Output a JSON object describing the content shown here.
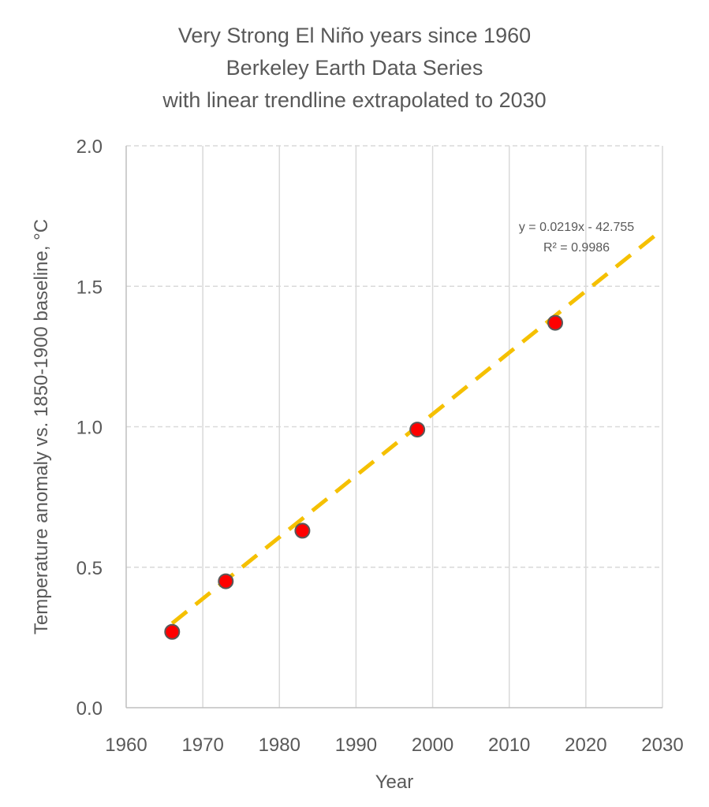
{
  "chart_data": {
    "type": "scatter",
    "title_lines": [
      "Very Strong El Niño years since 1960",
      "Berkeley Earth Data Series",
      "with linear trendline extrapolated to 2030"
    ],
    "xlabel": "Year",
    "ylabel": "Temperature anomaly vs. 1850-1900 baseline,  °C",
    "xlim": [
      1960,
      2030
    ],
    "ylim": [
      0.0,
      2.0
    ],
    "xticks": [
      "1960",
      "1970",
      "1980",
      "1990",
      "2000",
      "2010",
      "2020",
      "2030"
    ],
    "yticks": [
      "0.0",
      "0.5",
      "1.0",
      "1.5",
      "2.0"
    ],
    "series": [
      {
        "name": "Very Strong El Niño years",
        "points": [
          {
            "x": 1966,
            "y": 0.27
          },
          {
            "x": 1973,
            "y": 0.45
          },
          {
            "x": 1983,
            "y": 0.63
          },
          {
            "x": 1998,
            "y": 0.99
          },
          {
            "x": 2016,
            "y": 1.37
          }
        ]
      }
    ],
    "trendline": {
      "type": "linear",
      "x_start": 1966,
      "x_end": 2030,
      "slope": 0.0219,
      "intercept": -42.755,
      "equation_label": "y = 0.0219x - 42.755",
      "r2_label": "R² = 0.9986"
    },
    "grid": true,
    "legend": "none"
  },
  "colors": {
    "marker_fill": "#ff0000",
    "marker_stroke": "#595959",
    "trendline": "#f5c000",
    "grid": "#d9d9d9",
    "axis": "#bfbfbf",
    "text": "#595959"
  }
}
